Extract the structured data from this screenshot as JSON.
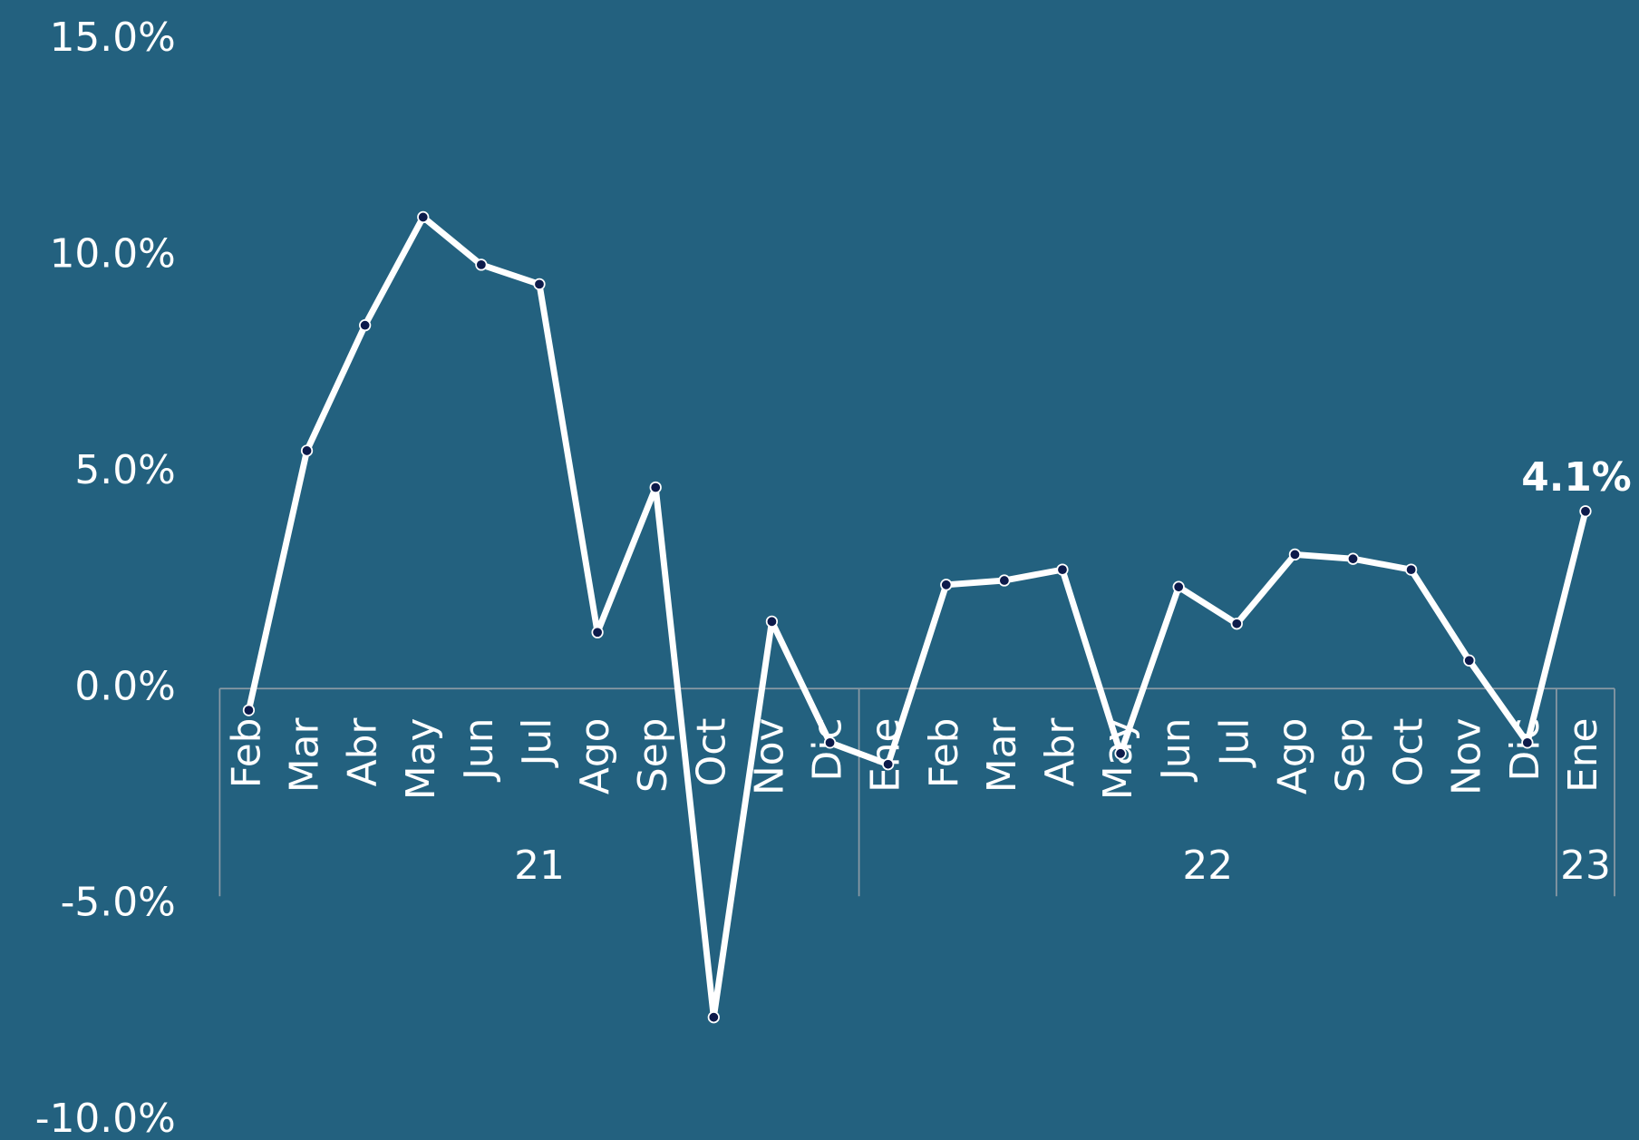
{
  "chart_data": {
    "type": "line",
    "groups": [
      {
        "label": "21",
        "categories": [
          "Feb",
          "Mar",
          "Abr",
          "May",
          "Jun",
          "Jul",
          "Ago",
          "Sep",
          "Oct",
          "Nov",
          "Dic"
        ]
      },
      {
        "label": "22",
        "categories": [
          "Ene",
          "Feb",
          "Mar",
          "Abr",
          "May",
          "Jun",
          "Jul",
          "Ago",
          "Sep",
          "Oct",
          "Nov",
          "Dic"
        ]
      },
      {
        "label": "23",
        "categories": [
          "Ene"
        ]
      }
    ],
    "values": [
      -0.5,
      5.5,
      8.4,
      10.9,
      9.8,
      9.35,
      1.3,
      4.65,
      -7.6,
      1.55,
      -1.25,
      -1.75,
      2.4,
      2.5,
      2.75,
      -1.5,
      2.35,
      1.5,
      3.1,
      3.0,
      2.75,
      0.65,
      -1.25,
      4.1
    ],
    "value_labels": [
      null,
      null,
      null,
      null,
      null,
      null,
      null,
      null,
      null,
      null,
      null,
      null,
      null,
      null,
      null,
      null,
      null,
      null,
      null,
      null,
      null,
      null,
      null,
      "4.1%"
    ],
    "color": "#ffffff",
    "marker_color": "#0d1b4b",
    "ylim": [
      -10,
      15
    ],
    "yticks": [
      {
        "value": -10,
        "label": "-10.0%"
      },
      {
        "value": -5,
        "label": "-5.0%"
      },
      {
        "value": 0,
        "label": "0.0%"
      },
      {
        "value": 5,
        "label": "5.0%"
      },
      {
        "value": 10,
        "label": "10.0%"
      },
      {
        "value": 15,
        "label": "15.0%"
      }
    ]
  }
}
